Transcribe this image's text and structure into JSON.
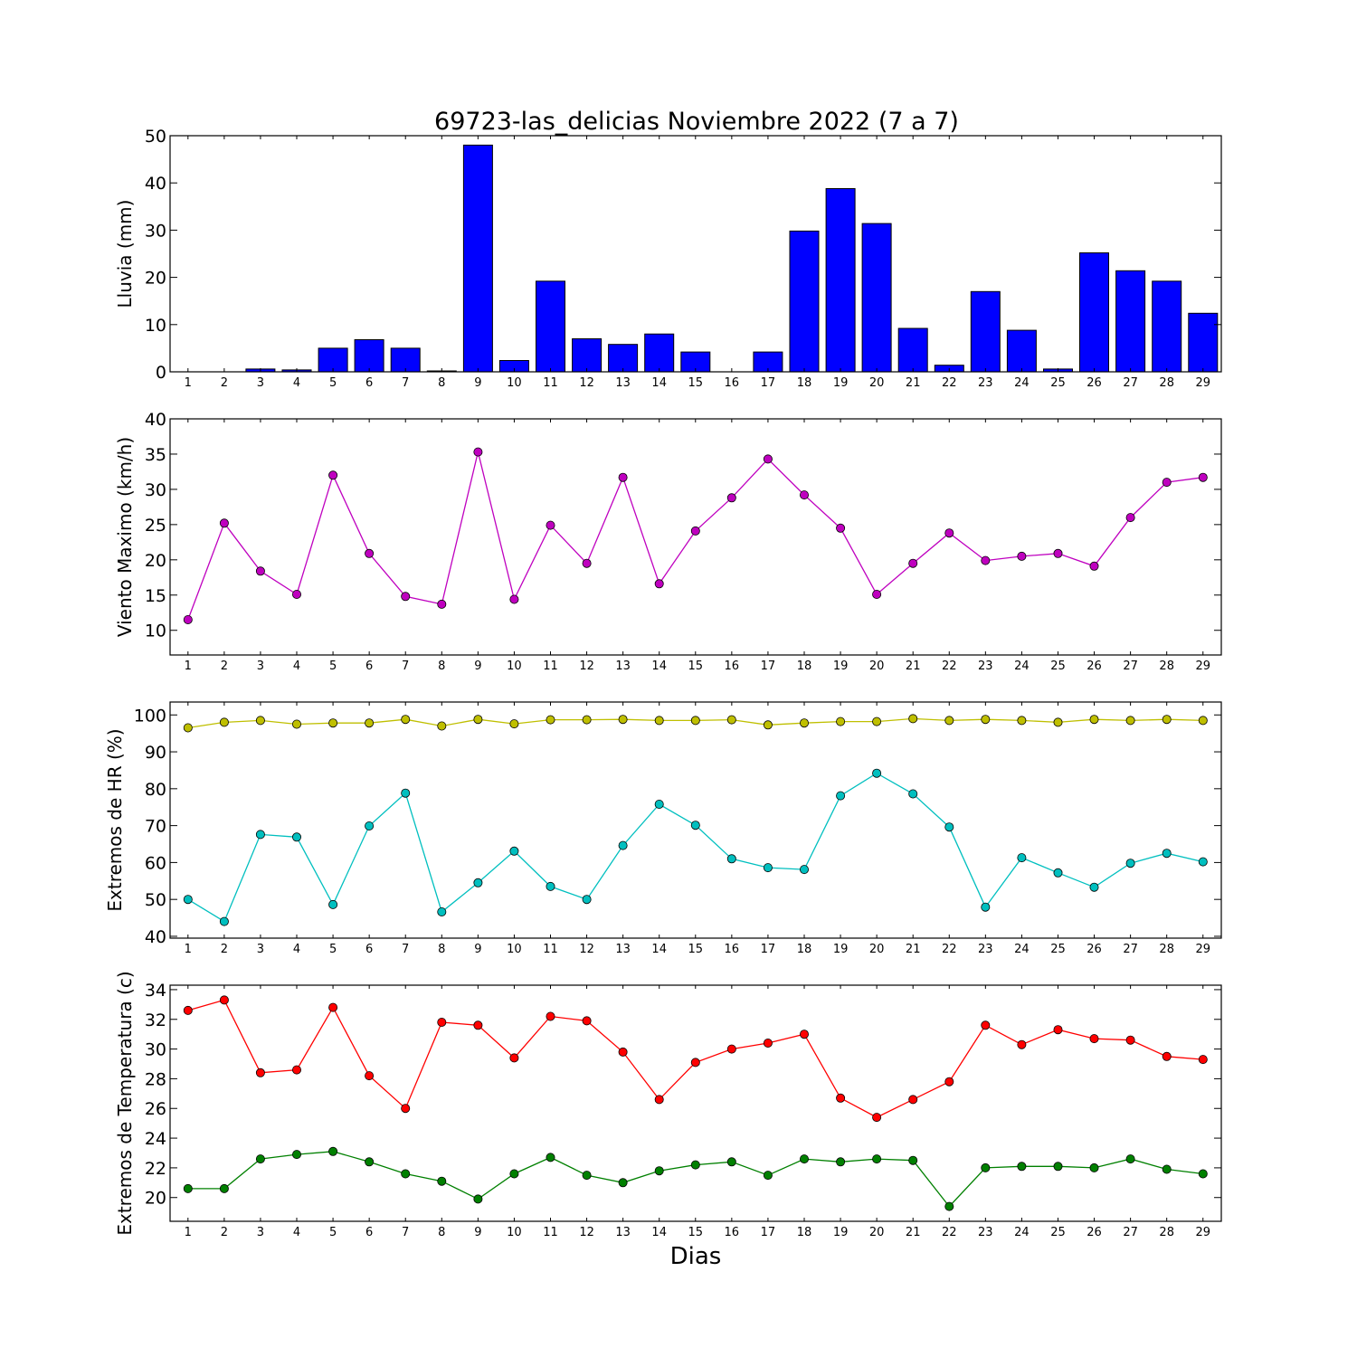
{
  "title": "69723-las_delicias Noviembre 2022  (7 a 7)",
  "xlabel": "Dias",
  "chart_data": [
    {
      "type": "bar",
      "ylabel": "Lluvia (mm)",
      "ylim": [
        0,
        50
      ],
      "yticks": [
        0,
        10,
        20,
        30,
        40,
        50
      ],
      "categories": [
        "1",
        "2",
        "3",
        "4",
        "5",
        "6",
        "7",
        "8",
        "9",
        "10",
        "11",
        "12",
        "13",
        "14",
        "15",
        "16",
        "17",
        "18",
        "19",
        "20",
        "21",
        "22",
        "23",
        "24",
        "25",
        "26",
        "27",
        "28",
        "29"
      ],
      "series": [
        {
          "color": "#0000ff",
          "values": [
            0,
            0,
            0.6,
            0.4,
            5.0,
            6.8,
            5.0,
            0.2,
            48.0,
            2.4,
            19.2,
            7.0,
            5.8,
            8.0,
            4.2,
            0,
            4.2,
            29.8,
            38.8,
            31.4,
            9.2,
            1.4,
            17.0,
            8.8,
            0.6,
            25.2,
            21.4,
            19.2,
            12.4
          ]
        }
      ]
    },
    {
      "type": "line",
      "ylabel": "Viento Maximo (km/h)",
      "ylim": [
        6.5,
        40
      ],
      "yticks": [
        10,
        15,
        20,
        25,
        30,
        35,
        40
      ],
      "categories": [
        "1",
        "2",
        "3",
        "4",
        "5",
        "6",
        "7",
        "8",
        "9",
        "10",
        "11",
        "12",
        "13",
        "14",
        "15",
        "16",
        "17",
        "18",
        "19",
        "20",
        "21",
        "22",
        "23",
        "24",
        "25",
        "26",
        "27",
        "28",
        "29"
      ],
      "series": [
        {
          "color": "#bf00bf",
          "values": [
            11.5,
            25.2,
            18.4,
            15.1,
            32.0,
            20.9,
            14.8,
            13.7,
            35.3,
            14.4,
            24.9,
            19.5,
            31.7,
            16.6,
            24.1,
            28.8,
            34.3,
            29.2,
            24.5,
            15.1,
            19.5,
            23.8,
            19.9,
            20.5,
            20.9,
            19.1,
            26.0,
            31.0,
            31.7
          ]
        }
      ]
    },
    {
      "type": "line",
      "ylabel": "Extremos de HR (%)",
      "ylim": [
        39.5,
        103.5
      ],
      "yticks": [
        40,
        50,
        60,
        70,
        80,
        90,
        100
      ],
      "categories": [
        "1",
        "2",
        "3",
        "4",
        "5",
        "6",
        "7",
        "8",
        "9",
        "10",
        "11",
        "12",
        "13",
        "14",
        "15",
        "16",
        "17",
        "18",
        "19",
        "20",
        "21",
        "22",
        "23",
        "24",
        "25",
        "26",
        "27",
        "28",
        "29"
      ],
      "series": [
        {
          "color": "#bfbf00",
          "values": [
            96.5,
            98.0,
            98.5,
            97.5,
            97.8,
            97.8,
            98.8,
            97.0,
            98.8,
            97.6,
            98.7,
            98.7,
            98.8,
            98.5,
            98.5,
            98.7,
            97.3,
            97.8,
            98.2,
            98.2,
            99.0,
            98.5,
            98.8,
            98.5,
            98.0,
            98.8,
            98.5,
            98.8,
            98.5
          ]
        },
        {
          "color": "#00bfbf",
          "values": [
            50.0,
            44.0,
            67.6,
            66.9,
            48.6,
            69.9,
            78.8,
            46.6,
            54.5,
            63.1,
            53.5,
            50.0,
            64.6,
            75.8,
            70.1,
            61.0,
            58.6,
            58.1,
            78.1,
            84.2,
            78.6,
            69.6,
            47.9,
            61.3,
            57.2,
            53.3,
            59.8,
            62.5,
            60.2
          ]
        }
      ]
    },
    {
      "type": "line",
      "ylabel": "Extremos de Temperatura (c)",
      "ylim": [
        18.4,
        34.3
      ],
      "yticks": [
        20,
        22,
        24,
        26,
        28,
        30,
        32,
        34
      ],
      "categories": [
        "1",
        "2",
        "3",
        "4",
        "5",
        "6",
        "7",
        "8",
        "9",
        "10",
        "11",
        "12",
        "13",
        "14",
        "15",
        "16",
        "17",
        "18",
        "19",
        "20",
        "21",
        "22",
        "23",
        "24",
        "25",
        "26",
        "27",
        "28",
        "29"
      ],
      "series": [
        {
          "color": "#ff0000",
          "values": [
            32.6,
            33.3,
            28.4,
            28.6,
            32.8,
            28.2,
            26.0,
            31.8,
            31.6,
            29.4,
            32.2,
            31.9,
            29.8,
            26.6,
            29.1,
            30.0,
            30.4,
            31.0,
            26.7,
            25.4,
            26.6,
            27.8,
            31.6,
            30.3,
            31.3,
            30.7,
            30.6,
            29.5,
            29.3
          ]
        },
        {
          "color": "#008000",
          "values": [
            20.6,
            20.6,
            22.6,
            22.9,
            23.1,
            22.4,
            21.6,
            21.1,
            19.9,
            21.6,
            22.7,
            21.5,
            21.0,
            21.8,
            22.2,
            22.4,
            21.5,
            22.6,
            22.4,
            22.6,
            22.5,
            19.4,
            22.0,
            22.1,
            22.1,
            22.0,
            22.6,
            21.9,
            21.6
          ]
        }
      ]
    }
  ]
}
